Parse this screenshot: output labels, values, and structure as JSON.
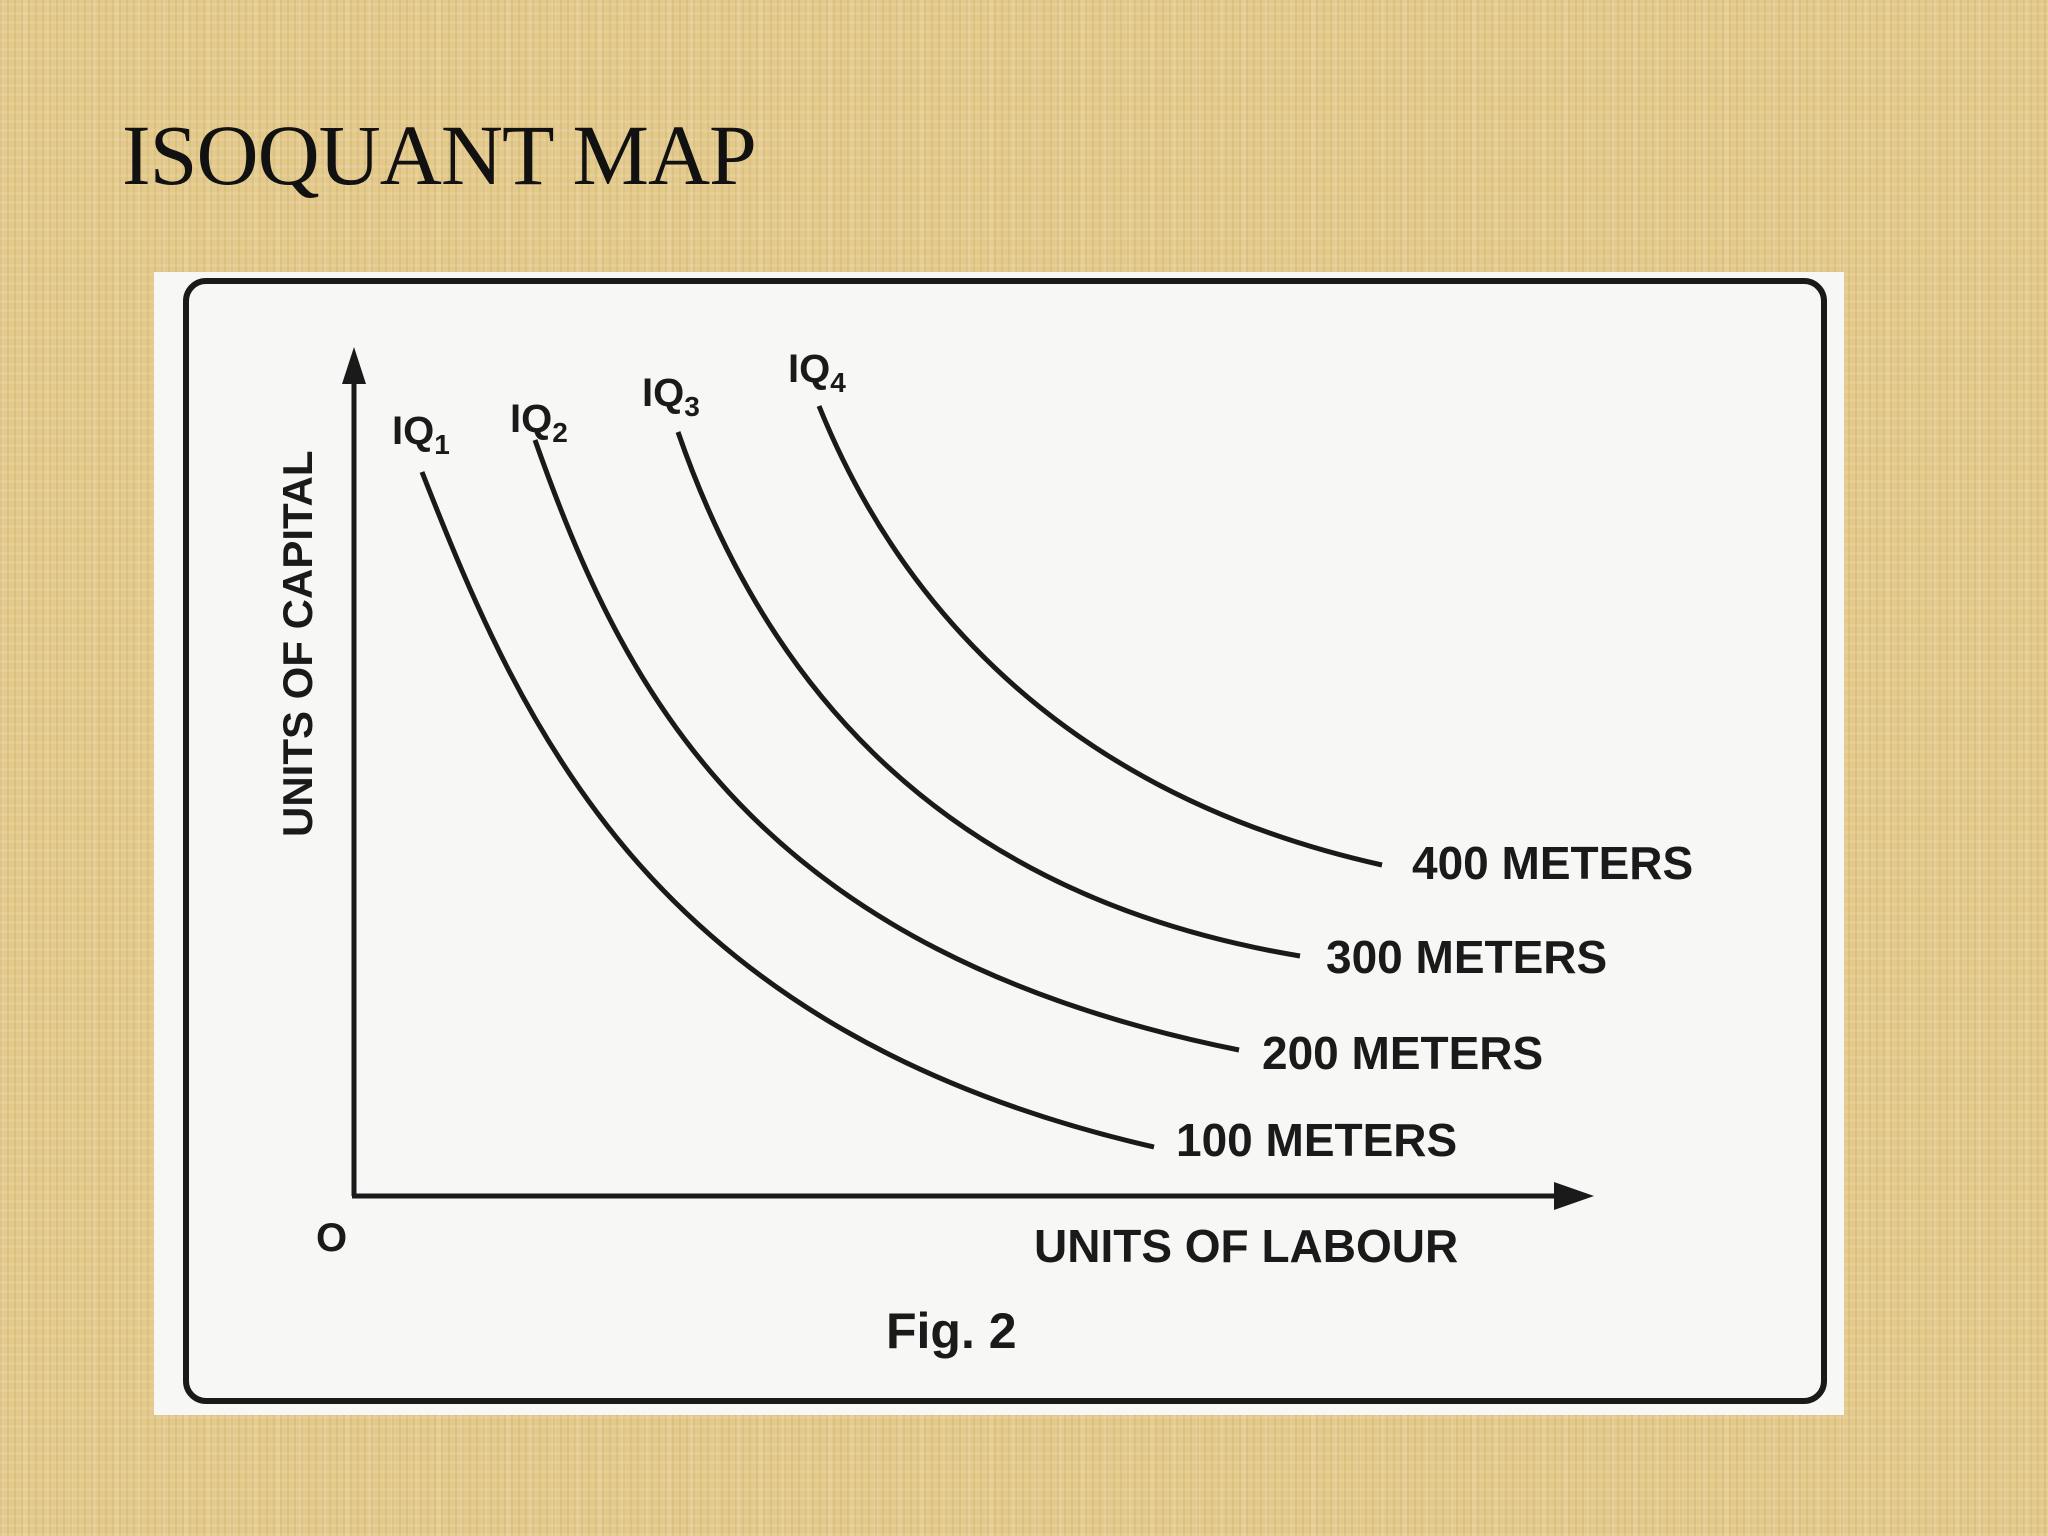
{
  "slide": {
    "title": "ISOQUANT MAP"
  },
  "figure": {
    "caption": "Fig. 2",
    "origin_label": "O",
    "x_axis_label": "UNITS OF LABOUR",
    "y_axis_label": "UNITS OF CAPITAL",
    "isoquants": [
      {
        "name": "IQ",
        "subscript": "1",
        "output_label": "100 METERS"
      },
      {
        "name": "IQ",
        "subscript": "2",
        "output_label": "200 METERS"
      },
      {
        "name": "IQ",
        "subscript": "3",
        "output_label": "300 METERS"
      },
      {
        "name": "IQ",
        "subscript": "4",
        "output_label": "400 METERS"
      }
    ]
  },
  "colors": {
    "background": "#e3c98a",
    "panel": "#f7f7f5",
    "ink": "#1a1a1a"
  }
}
